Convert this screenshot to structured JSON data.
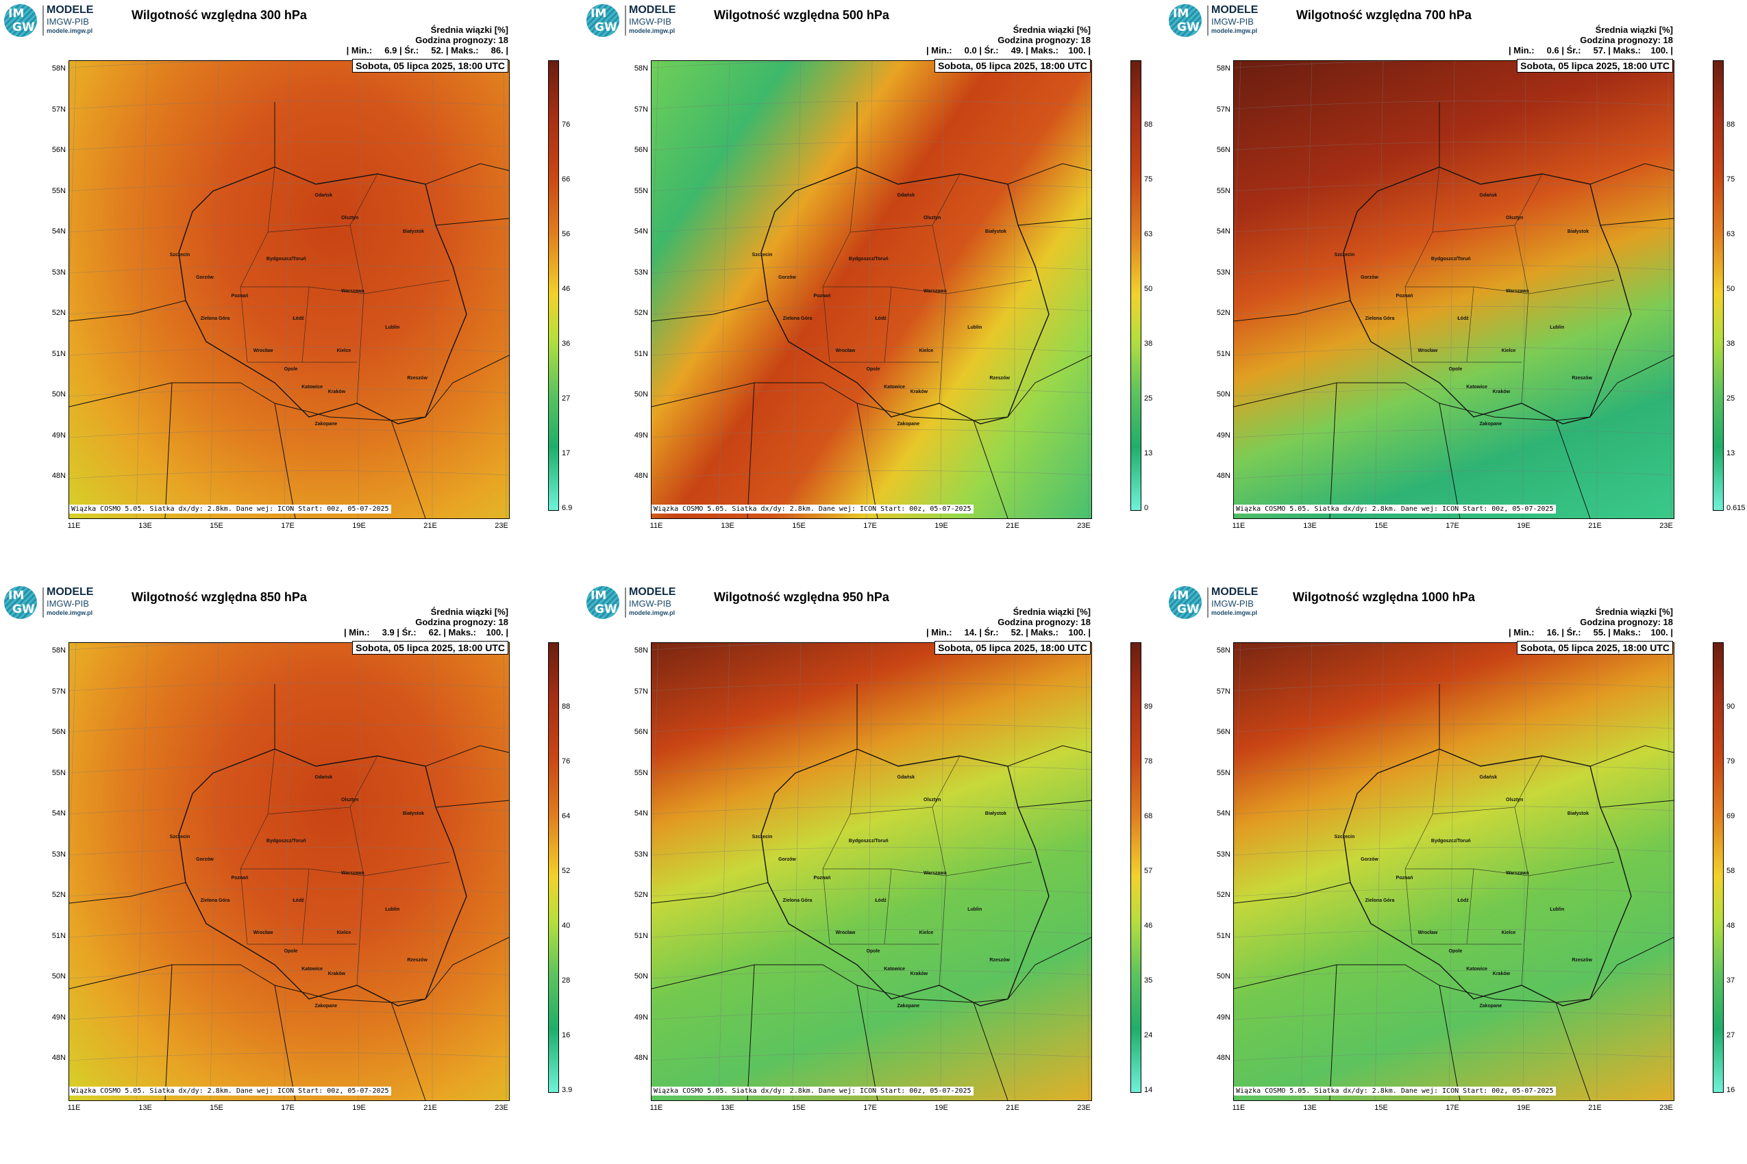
{
  "logo": {
    "im": "IM",
    "gw": "GW",
    "line1": "MODELE",
    "line2": "IMGW-PIB",
    "line3": "modele.imgw.pl"
  },
  "common": {
    "stats_line1": "Średnia wiązki [%]",
    "stats_line2": "Godzina prognozy: 18",
    "date": "Sobota, 05 lipca 2025, 18:00 UTC",
    "footer": "Wiązka COSMO 5.05. Siatka dx/dy: 2.8km. Dane wej: ICON Start: 00z, 05-07-2025",
    "lat_labels": [
      "58N",
      "57N",
      "56N",
      "55N",
      "54N",
      "53N",
      "52N",
      "51N",
      "50N",
      "49N",
      "48N"
    ],
    "lon_labels": [
      "11E",
      "13E",
      "15E",
      "17E",
      "19E",
      "21E",
      "23E"
    ]
  },
  "panels": [
    {
      "id": "p300",
      "title": "Wilgotność względna 300 hPa",
      "stats_line3": "| Min.:     6.9 | Śr.:     52. | Maks.:     86. |",
      "colorbar": [
        "76",
        "66",
        "56",
        "46",
        "36",
        "27",
        "17",
        "6.9"
      ],
      "dominant": "orange"
    },
    {
      "id": "p500",
      "title": "Wilgotność względna 500 hPa",
      "stats_line3": "| Min.:     0.0 | Śr.:     49. | Maks.:    100. |",
      "colorbar": [
        "88",
        "75",
        "63",
        "50",
        "38",
        "25",
        "13",
        "0"
      ],
      "dominant": "mixed"
    },
    {
      "id": "p700",
      "title": "Wilgotność względna 700 hPa",
      "stats_line3": "| Min.:     0.6 | Śr.:     57. | Maks.:    100. |",
      "colorbar": [
        "88",
        "75",
        "63",
        "50",
        "38",
        "25",
        "13",
        "0.615"
      ],
      "dominant": "red-north-green-south"
    },
    {
      "id": "p850",
      "title": "Wilgotność względna 850 hPa",
      "stats_line3": "| Min.:     3.9 | Śr.:     62. | Maks.:    100. |",
      "colorbar": [
        "88",
        "76",
        "64",
        "52",
        "40",
        "28",
        "16",
        "3.9"
      ],
      "dominant": "orange"
    },
    {
      "id": "p950",
      "title": "Wilgotność względna 950 hPa",
      "stats_line3": "| Min.:     14. | Śr.:     52. | Maks.:    100. |",
      "colorbar": [
        "89",
        "78",
        "68",
        "57",
        "46",
        "35",
        "24",
        "14"
      ],
      "dominant": "green"
    },
    {
      "id": "p1000",
      "title": "Wilgotność względna 1000 hPa",
      "stats_line3": "| Min.:     16. | Śr.:     55. | Maks.:    100. |",
      "colorbar": [
        "90",
        "79",
        "69",
        "58",
        "48",
        "37",
        "27",
        "16"
      ],
      "dominant": "green"
    }
  ],
  "cities": [
    "Gdańsk",
    "Olsztyn",
    "Białystok",
    "Szczecin",
    "Bydgoszcz/Toruń",
    "Gorzów",
    "Poznań",
    "Warszawa",
    "Zielona Góra",
    "Łódź",
    "Lublin",
    "Wrocław",
    "Kielce",
    "Opole",
    "Rzeszów",
    "Katowice",
    "Kraków",
    "Zakopane"
  ]
}
